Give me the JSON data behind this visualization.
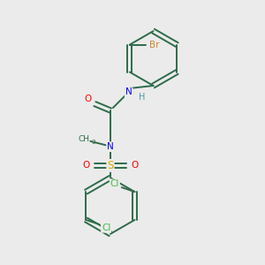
{
  "background_color": "#ebebeb",
  "bond_color": "#2d6b4a",
  "atom_colors": {
    "Br": "#cc8833",
    "N": "#0000ee",
    "O": "#ff0000",
    "S": "#ddaa00",
    "Cl": "#44bb44",
    "C": "#2d6b4a",
    "H": "#4499aa"
  }
}
